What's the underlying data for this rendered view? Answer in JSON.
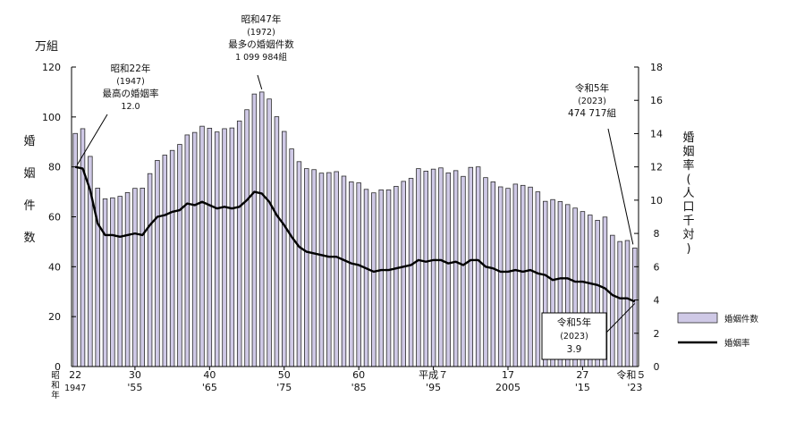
{
  "chart_data": {
    "type": "bar+line",
    "x_start_year": 1947,
    "x_end_year": 2023,
    "left_axis": {
      "unit": "万組",
      "label_chars": [
        "婚",
        "姻",
        "件",
        "数"
      ],
      "ylim": [
        0,
        120
      ],
      "ticks": [
        0,
        20,
        40,
        60,
        80,
        100,
        120
      ]
    },
    "right_axis": {
      "label_chars": [
        "婚",
        "姻",
        "率",
        "(",
        "人",
        "口",
        "千",
        "対",
        ")"
      ],
      "ylim": [
        0,
        18
      ],
      "ticks": [
        0,
        2,
        4,
        6,
        8,
        10,
        12,
        14,
        16,
        18
      ]
    },
    "series": [
      {
        "name": "婚姻件数",
        "type": "bar",
        "unit": "万組",
        "values": [
          93.4,
          95.3,
          84.2,
          71.5,
          67.2,
          67.6,
          68.2,
          69.7,
          71.4,
          71.5,
          77.3,
          82.6,
          84.7,
          86.6,
          89.0,
          92.8,
          93.8,
          96.3,
          95.5,
          94.0,
          95.3,
          95.6,
          98.4,
          102.9,
          109.2,
          110.0,
          107.2,
          100.1,
          94.2,
          87.2,
          82.1,
          79.3,
          78.9,
          77.5,
          77.7,
          78.1,
          76.3,
          74.0,
          73.6,
          71.0,
          69.6,
          70.8,
          70.8,
          72.2,
          74.2,
          75.4,
          79.3,
          78.3,
          79.1,
          79.6,
          77.6,
          78.5,
          76.2,
          79.8,
          80.0,
          75.7,
          74.0,
          72.0,
          71.4,
          73.1,
          72.6,
          71.9,
          70.0,
          66.2,
          66.9,
          66.1,
          64.9,
          63.5,
          62.1,
          60.7,
          58.6,
          59.9,
          52.6,
          50.1,
          50.5,
          47.5
        ]
      },
      {
        "name": "婚姻率",
        "type": "line",
        "unit": "人口千対",
        "values": [
          12.0,
          11.9,
          10.6,
          8.6,
          7.9,
          7.9,
          7.8,
          7.9,
          8.0,
          7.9,
          8.5,
          9.0,
          9.1,
          9.3,
          9.4,
          9.8,
          9.7,
          9.9,
          9.7,
          9.5,
          9.6,
          9.5,
          9.6,
          10.0,
          10.5,
          10.4,
          9.9,
          9.1,
          8.5,
          7.8,
          7.2,
          6.9,
          6.8,
          6.7,
          6.6,
          6.6,
          6.4,
          6.2,
          6.1,
          5.9,
          5.7,
          5.8,
          5.8,
          5.9,
          6.0,
          6.1,
          6.4,
          6.3,
          6.4,
          6.4,
          6.2,
          6.3,
          6.1,
          6.4,
          6.4,
          6.0,
          5.9,
          5.7,
          5.7,
          5.8,
          5.7,
          5.8,
          5.6,
          5.5,
          5.2,
          5.3,
          5.3,
          5.1,
          5.1,
          5.0,
          4.9,
          4.7,
          4.3,
          4.1,
          4.1,
          3.9
        ]
      }
    ],
    "x_ticks": [
      {
        "year": 1955,
        "top": "30",
        "bottom": "'55"
      },
      {
        "year": 1965,
        "top": "40",
        "bottom": "'65"
      },
      {
        "year": 1975,
        "top": "50",
        "bottom": "'75"
      },
      {
        "year": 1985,
        "top": "60",
        "bottom": "'85"
      },
      {
        "year": 1995,
        "top": "平成７",
        "bottom": "'95"
      },
      {
        "year": 2005,
        "top": "17",
        "bottom": "2005"
      },
      {
        "year": 2015,
        "top": "27",
        "bottom": "'15"
      }
    ],
    "x_start_labels": {
      "era_lines": [
        "昭",
        "和"
      ],
      "nen": "年",
      "top": "22",
      "bottom": "1947"
    },
    "x_end_labels": {
      "top": "令和５",
      "bottom": "'23"
    },
    "annotations": {
      "peak_rate": {
        "lines": [
          "昭和22年",
          "(1947)",
          "最高の婚姻率",
          "12.0"
        ]
      },
      "peak_count": {
        "lines": [
          "昭和47年",
          "(1972)",
          "最多の婚姻件数",
          "1 099 984組"
        ]
      },
      "latest_count": {
        "lines": [
          "令和5年",
          "(2023)",
          "474 717組"
        ]
      },
      "latest_rate": {
        "lines": [
          "令和5年",
          "(2023)",
          "3.9"
        ]
      }
    },
    "legend": {
      "bar": "婚姻件数",
      "line": "婚姻率"
    }
  },
  "colors": {
    "bar_fill": "#cfc9e6",
    "bar_stroke": "#2b2b2b",
    "line": "#000000",
    "axis": "#000000"
  }
}
